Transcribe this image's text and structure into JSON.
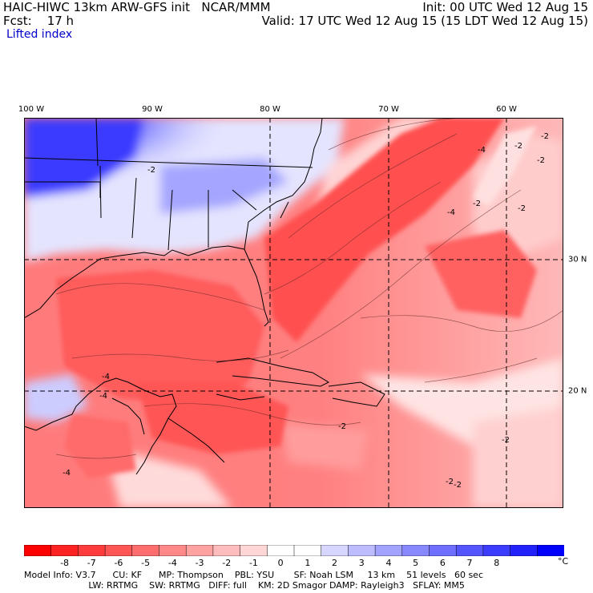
{
  "header": {
    "model_line": "HAIC-HIWC 13km ARW-GFS init   NCAR/MMM",
    "init": "Init: 00 UTC Wed 12 Aug 15",
    "forecast": "Fcst:    17 h",
    "valid": "Valid: 17 UTC Wed 12 Aug 15 (15 LDT Wed 12 Aug 15)",
    "field": "Lifted index"
  },
  "map": {
    "longitude_labels": [
      "100 W",
      "90 W",
      "80 W",
      "70 W",
      "60 W"
    ],
    "latitude_labels": [
      "30 N",
      "20 N"
    ],
    "contour_labels": [
      "-4",
      "-4",
      "-4",
      "-2",
      "-2",
      "-2",
      "-2",
      "-4",
      "-2",
      "-4",
      "-2",
      "-2",
      "-2",
      "-2",
      "-2"
    ]
  },
  "colorbar": {
    "labels": [
      "-8",
      "-7",
      "-6",
      "-5",
      "-4",
      "-3",
      "-2",
      "-1",
      "0",
      "1",
      "2",
      "3",
      "4",
      "5",
      "6",
      "7",
      "8"
    ],
    "unit": "°C",
    "colors": [
      "#ff0000",
      "#ff2222",
      "#ff3c3c",
      "#ff5555",
      "#ff6e6e",
      "#ff8888",
      "#ffa2a2",
      "#ffbcbc",
      "#ffd6d6",
      "#ffffff",
      "#ffffff",
      "#d6d6ff",
      "#bcbcff",
      "#a2a2ff",
      "#8888ff",
      "#6e6eff",
      "#5555ff",
      "#3c3cff",
      "#2222ff",
      "#0000ff"
    ]
  },
  "info": {
    "line1": "Model Info: V3.7      CU: KF      MP: Thompson    PBL: YSU       SF: Noah LSM     13 km    51 levels   60 sec",
    "line2": "                       LW: RRTMG    SW: RRTMG   DIFF: full    KM: 2D Smagor DAMP: Rayleigh3   SFLAY: MM5"
  }
}
